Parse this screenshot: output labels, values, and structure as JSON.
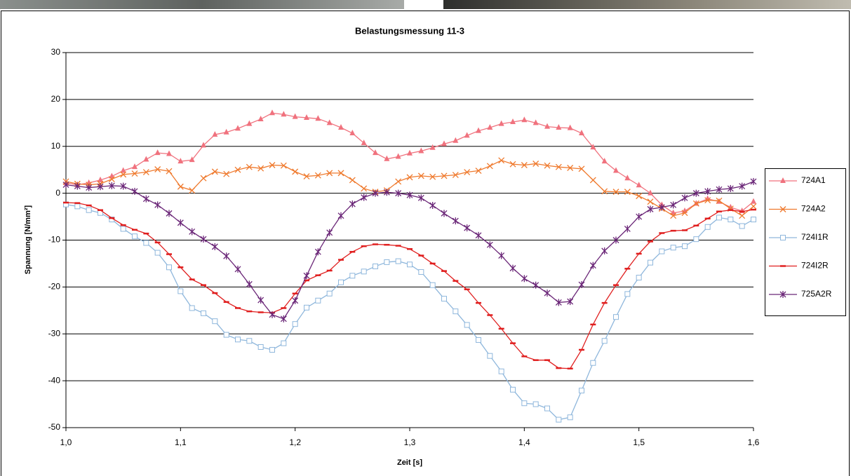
{
  "chart_data": {
    "type": "line",
    "title": "Belastungsmessung 11-3",
    "x_label": "Zeit [s]",
    "y_label": "Spannung [N/mm²]",
    "x": [
      1.0,
      1.01,
      1.02,
      1.03,
      1.04,
      1.05,
      1.06,
      1.07,
      1.08,
      1.09,
      1.1,
      1.11,
      1.12,
      1.13,
      1.14,
      1.15,
      1.16,
      1.17,
      1.18,
      1.19,
      1.2,
      1.21,
      1.22,
      1.23,
      1.24,
      1.25,
      1.26,
      1.27,
      1.28,
      1.29,
      1.3,
      1.31,
      1.32,
      1.33,
      1.34,
      1.35,
      1.36,
      1.37,
      1.38,
      1.39,
      1.4,
      1.41,
      1.42,
      1.43,
      1.44,
      1.45,
      1.46,
      1.47,
      1.48,
      1.49,
      1.5,
      1.51,
      1.52,
      1.53,
      1.54,
      1.55,
      1.56,
      1.57,
      1.58,
      1.59,
      1.6
    ],
    "xlim": [
      1.0,
      1.6
    ],
    "xticks": [
      {
        "value": 1.0,
        "label": "1,0"
      },
      {
        "value": 1.1,
        "label": "1,1"
      },
      {
        "value": 1.2,
        "label": "1,2"
      },
      {
        "value": 1.3,
        "label": "1,3"
      },
      {
        "value": 1.4,
        "label": "1,4"
      },
      {
        "value": 1.5,
        "label": "1,5"
      },
      {
        "value": 1.6,
        "label": "1,6"
      }
    ],
    "ylim": [
      -50,
      30
    ],
    "yticks": [
      -50,
      -40,
      -30,
      -20,
      -10,
      0,
      10,
      20,
      30
    ],
    "grid": true,
    "legend": "right",
    "series": [
      {
        "name": "724A1",
        "color": "#f0727e",
        "marker": "triangle",
        "values": [
          2.2,
          1.8,
          2.2,
          2.8,
          3.6,
          4.8,
          5.6,
          7.2,
          8.6,
          8.4,
          6.8,
          7.1,
          10.2,
          12.5,
          13.0,
          13.8,
          14.8,
          15.8,
          17.1,
          16.8,
          16.3,
          16.1,
          15.9,
          15.0,
          14.0,
          12.8,
          10.7,
          8.6,
          7.3,
          7.8,
          8.5,
          9.0,
          9.7,
          10.5,
          11.2,
          12.3,
          13.3,
          14.0,
          14.8,
          15.2,
          15.6,
          15.0,
          14.2,
          14.0,
          13.9,
          12.8,
          9.8,
          6.8,
          4.8,
          3.2,
          1.7,
          0.0,
          -2.5,
          -4.2,
          -3.8,
          -2.2,
          -1.2,
          -1.8,
          -3.0,
          -3.8,
          -1.8
        ]
      },
      {
        "name": "724A2",
        "color": "#ef7a2e",
        "marker": "x",
        "values": [
          2.5,
          2.0,
          1.8,
          2.0,
          3.0,
          4.0,
          4.2,
          4.5,
          5.1,
          4.7,
          1.4,
          0.6,
          3.2,
          4.6,
          4.1,
          5.0,
          5.6,
          5.3,
          6.0,
          5.9,
          4.6,
          3.6,
          3.8,
          4.3,
          4.3,
          2.8,
          1.0,
          0.3,
          0.6,
          2.5,
          3.4,
          3.7,
          3.5,
          3.7,
          3.9,
          4.5,
          4.8,
          5.8,
          7.0,
          6.2,
          6.0,
          6.3,
          5.9,
          5.6,
          5.4,
          5.2,
          2.8,
          0.4,
          0.3,
          0.3,
          -0.6,
          -1.8,
          -3.3,
          -4.8,
          -4.2,
          -2.2,
          -1.5,
          -1.6,
          -3.3,
          -4.8,
          -2.8
        ]
      },
      {
        "name": "724I1R",
        "color": "#8fb7dc",
        "marker": "square",
        "values": [
          -2.4,
          -2.8,
          -3.6,
          -4.2,
          -5.6,
          -7.6,
          -9.2,
          -10.6,
          -12.7,
          -15.8,
          -20.9,
          -24.5,
          -25.6,
          -27.3,
          -30.2,
          -31.2,
          -31.5,
          -32.8,
          -33.4,
          -32.0,
          -27.9,
          -24.4,
          -22.9,
          -21.4,
          -19.0,
          -17.6,
          -16.7,
          -15.6,
          -14.7,
          -14.5,
          -15.2,
          -16.8,
          -19.6,
          -22.5,
          -25.2,
          -28.1,
          -31.3,
          -34.7,
          -38.0,
          -41.9,
          -44.8,
          -45.0,
          -45.9,
          -48.3,
          -47.8,
          -42.1,
          -36.2,
          -31.5,
          -26.4,
          -21.5,
          -18.0,
          -14.8,
          -12.4,
          -11.6,
          -11.3,
          -9.8,
          -7.2,
          -5.2,
          -5.6,
          -7.0,
          -5.6
        ]
      },
      {
        "name": "724I2R",
        "color": "#e01f1f",
        "marker": "dash",
        "values": [
          -2.0,
          -2.1,
          -2.6,
          -3.6,
          -5.3,
          -6.8,
          -7.8,
          -8.6,
          -10.5,
          -13.0,
          -15.8,
          -18.4,
          -19.6,
          -21.3,
          -23.2,
          -24.5,
          -25.2,
          -25.4,
          -25.5,
          -24.5,
          -21.4,
          -18.6,
          -17.5,
          -16.5,
          -14.2,
          -12.5,
          -11.3,
          -10.9,
          -11.0,
          -11.2,
          -11.9,
          -13.3,
          -15.0,
          -16.6,
          -18.7,
          -20.5,
          -23.4,
          -26.0,
          -28.9,
          -32.0,
          -34.8,
          -35.6,
          -35.6,
          -37.3,
          -37.4,
          -33.4,
          -28.0,
          -23.4,
          -19.6,
          -16.1,
          -12.9,
          -10.3,
          -8.5,
          -8.0,
          -7.9,
          -6.9,
          -5.4,
          -3.9,
          -3.6,
          -3.9,
          -3.5
        ]
      },
      {
        "name": "725A2R",
        "color": "#6b2778",
        "marker": "asterisk",
        "values": [
          1.8,
          1.5,
          1.2,
          1.4,
          1.6,
          1.5,
          0.4,
          -1.2,
          -2.5,
          -4.3,
          -6.3,
          -8.2,
          -9.8,
          -11.4,
          -13.4,
          -16.2,
          -19.4,
          -22.8,
          -25.9,
          -26.8,
          -22.9,
          -17.6,
          -12.5,
          -8.4,
          -4.8,
          -2.3,
          -0.9,
          0.0,
          0.2,
          0.0,
          -0.4,
          -1.0,
          -2.6,
          -4.3,
          -5.9,
          -7.4,
          -9.0,
          -11.0,
          -13.3,
          -16.0,
          -18.2,
          -19.6,
          -21.3,
          -23.3,
          -23.1,
          -19.5,
          -15.4,
          -12.3,
          -10.0,
          -7.6,
          -5.0,
          -3.4,
          -3.0,
          -2.5,
          -1.0,
          0.0,
          0.4,
          0.8,
          1.0,
          1.5,
          2.5
        ]
      }
    ]
  }
}
